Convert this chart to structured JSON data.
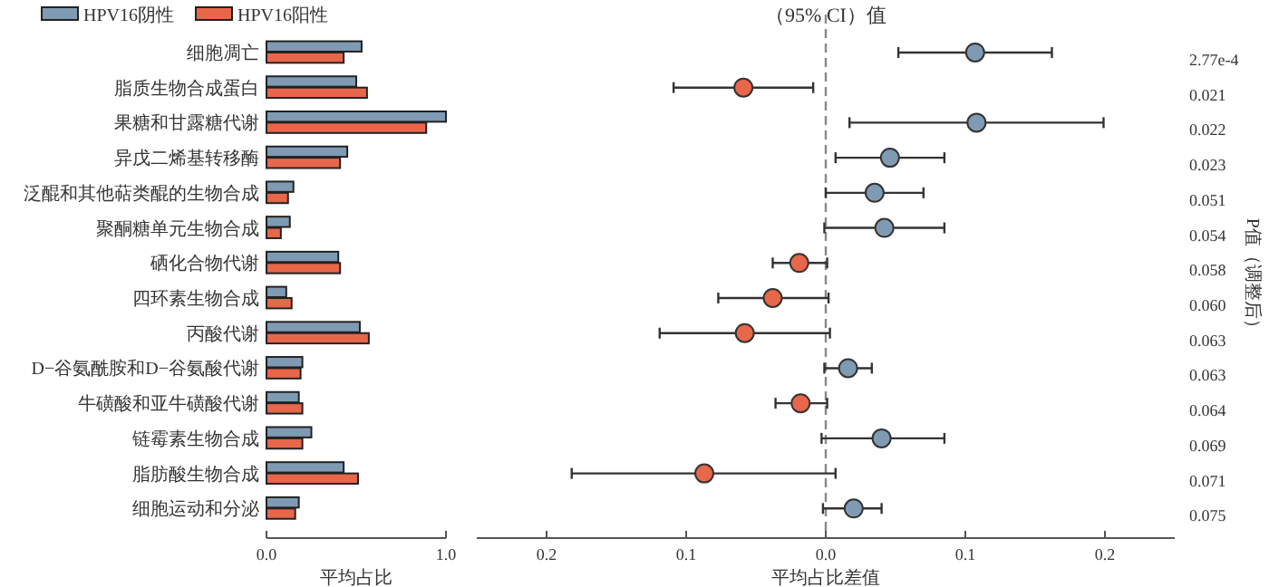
{
  "chart_data": [
    {
      "type": "bar",
      "orientation": "horizontal",
      "categories": [
        "细胞凋亡",
        "脂质生物合成蛋白",
        "果糖和甘露糖代谢",
        "异戊二烯基转移酶",
        "泛醌和其他萜类醌的生物合成",
        "聚酮糖单元生物合成",
        "硒化合物代谢",
        "四环素生物合成",
        "丙酸代谢",
        "D−谷氨酰胺和D−谷氨酸代谢",
        "牛磺酸和亚牛磺酸代谢",
        "链霉素生物合成",
        "脂肪酸生物合成",
        "细胞运动和分泌"
      ],
      "series": [
        {
          "name": "HPV16阴性",
          "color": "#7f9bb3",
          "values": [
            0.53,
            0.5,
            1.0,
            0.45,
            0.15,
            0.13,
            0.4,
            0.11,
            0.52,
            0.2,
            0.18,
            0.25,
            0.43,
            0.18
          ]
        },
        {
          "name": "HPV16阳性",
          "color": "#e8664a",
          "values": [
            0.43,
            0.56,
            0.89,
            0.41,
            0.12,
            0.08,
            0.41,
            0.14,
            0.57,
            0.19,
            0.2,
            0.2,
            0.51,
            0.16
          ]
        }
      ],
      "xlim": [
        0,
        1
      ],
      "xticks": [
        {
          "value": 0,
          "label": "0.0"
        },
        {
          "value": 1,
          "label": "1.0"
        }
      ],
      "xlabel": "平均占比",
      "legend": "top"
    },
    {
      "type": "scatter",
      "orientation": "horizontal",
      "categories": [
        null,
        null,
        null,
        null,
        null,
        null,
        null,
        null,
        null,
        null,
        null,
        null,
        null,
        null
      ],
      "series": [
        {
          "colors": [
            "#7f9bb3",
            "#e8664a",
            "#7f9bb3",
            "#7f9bb3",
            "#7f9bb3",
            "#7f9bb3",
            "#e8664a",
            "#e8664a",
            "#e8664a",
            "#7f9bb3",
            "#e8664a",
            "#7f9bb3",
            "#e8664a",
            "#7f9bb3"
          ],
          "values": [
            0.107,
            -0.059,
            0.108,
            0.046,
            0.035,
            0.042,
            -0.019,
            -0.038,
            -0.058,
            0.016,
            -0.018,
            0.04,
            -0.087,
            0.02
          ],
          "errors": [
            [
              0.052,
              0.162
            ],
            [
              -0.109,
              -0.009
            ],
            [
              0.017,
              0.199
            ],
            [
              0.007,
              0.085
            ],
            [
              0.0,
              0.07
            ],
            [
              -0.001,
              0.085
            ],
            [
              -0.038,
              0.001
            ],
            [
              -0.077,
              0.002
            ],
            [
              -0.119,
              0.003
            ],
            [
              -0.001,
              0.033
            ],
            [
              -0.036,
              0.001
            ],
            [
              -0.003,
              0.085
            ],
            [
              -0.182,
              0.007
            ],
            [
              -0.002,
              0.04
            ]
          ]
        }
      ],
      "xlim": [
        -0.25,
        0.25
      ],
      "xticks": [
        {
          "value": -0.2,
          "label": "0.2"
        },
        {
          "value": -0.1,
          "label": "0.1"
        },
        {
          "value": 0,
          "label": "0.0"
        },
        {
          "value": 0.1,
          "label": "0.1"
        },
        {
          "value": 0.2,
          "label": "0.2"
        }
      ],
      "xlabel": "平均占比差值",
      "title": "（95% CI）值",
      "y2label": "P值（调整后）",
      "ref_lines": [
        {
          "axis": "x",
          "value": 0,
          "color": "#888888",
          "line_style": "dashed"
        }
      ],
      "annotations": [
        "2.77e-4",
        "0.021",
        "0.022",
        "0.023",
        "0.051",
        "0.054",
        "0.058",
        "0.060",
        "0.063",
        "0.063",
        "0.064",
        "0.069",
        "0.071",
        "0.075"
      ]
    }
  ]
}
